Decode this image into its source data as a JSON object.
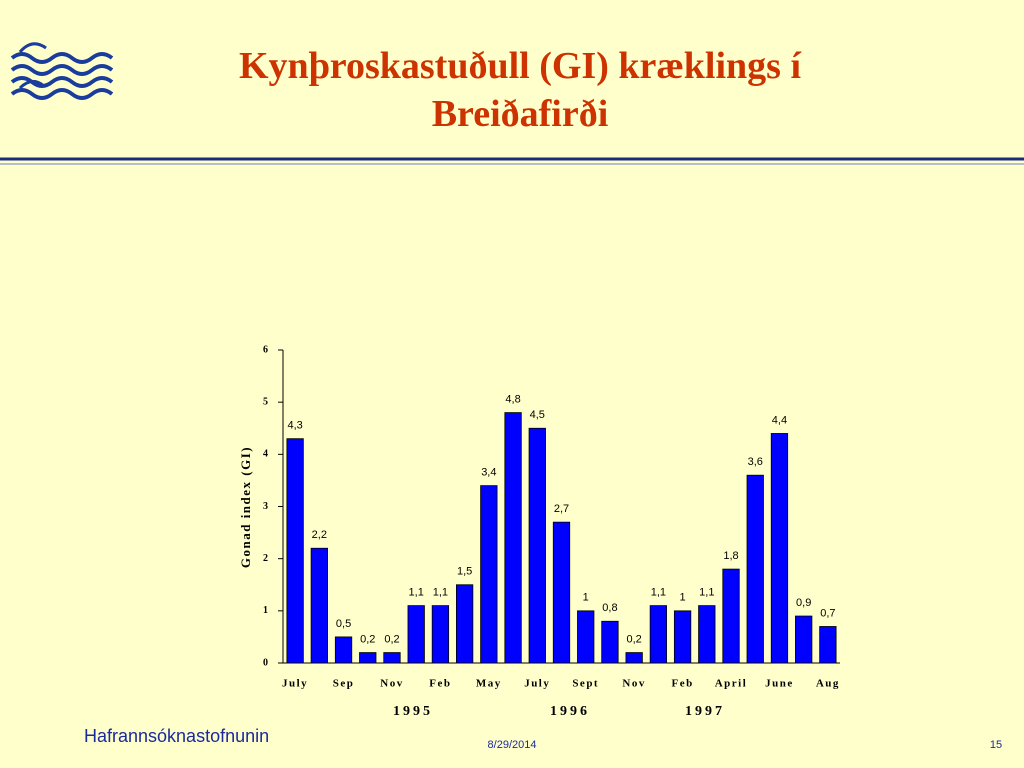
{
  "chart_data": {
    "type": "bar",
    "title": "Kynþroskastuðull (GI) kræklings í Breiðafirði",
    "y_label": "Gonad index (GI)",
    "categories": [
      "July",
      null,
      "Sep",
      null,
      "Nov",
      null,
      "Feb",
      null,
      "May",
      null,
      "July",
      null,
      "Sept",
      null,
      "Nov",
      null,
      "Feb",
      null,
      "April",
      null,
      "June",
      null,
      "Aug"
    ],
    "values": [
      4.3,
      2.2,
      0.5,
      0.2,
      0.2,
      1.1,
      1.1,
      1.5,
      3.4,
      4.8,
      4.5,
      2.7,
      1,
      0.8,
      0.2,
      1.1,
      1,
      1.1,
      1.8,
      3.6,
      4.4,
      0.9,
      0.7
    ],
    "value_labels": [
      "4,3",
      "2,2",
      "0,5",
      "0,2",
      "0,2",
      "1,1",
      "1,1",
      "1,5",
      "3,4",
      "4,8",
      "4,5",
      "2,7",
      "1",
      "0,8",
      "0,2",
      "1,1",
      "1",
      "1,1",
      "1,8",
      "3,6",
      "4,4",
      "0,9",
      "0,7"
    ],
    "color": "#0000ff",
    "ylim": [
      0,
      6
    ],
    "yticks": [
      0,
      1,
      2,
      3,
      4,
      5,
      6
    ],
    "grid": false,
    "annotations": [
      "1995",
      "1996",
      "1997"
    ]
  },
  "footer": {
    "organization": "Hafrannsóknastofnunin",
    "date": "8/29/2014",
    "page": "15"
  }
}
